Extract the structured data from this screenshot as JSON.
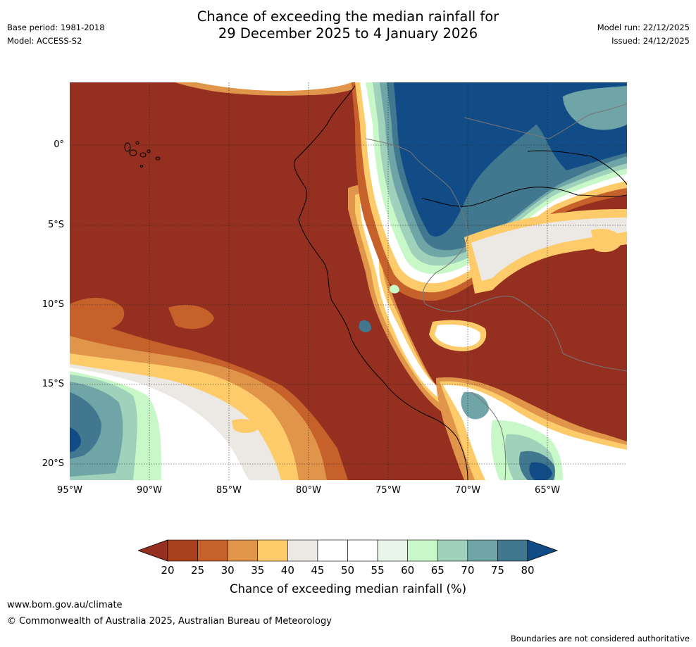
{
  "header": {
    "base_period": "Base period: 1981-2018",
    "model": "Model: ACCESS-S2",
    "model_run": "Model run: 22/12/2025",
    "issued": "Issued: 24/12/2025"
  },
  "title": {
    "line1": "Chance of exceeding the median rainfall for",
    "line2": "29 December 2025 to 4 January 2026"
  },
  "map": {
    "lat_labels": [
      "0°",
      "5°S",
      "10°S",
      "15°S",
      "20°S"
    ],
    "lon_labels": [
      "95°W",
      "90°W",
      "85°W",
      "80°W",
      "75°W",
      "70°W",
      "65°W"
    ]
  },
  "colorbar": {
    "ticks": [
      "20",
      "25",
      "30",
      "35",
      "40",
      "45",
      "50",
      "55",
      "60",
      "65",
      "70",
      "75",
      "80"
    ],
    "colors": [
      "#a9411f",
      "#c6612c",
      "#e0954a",
      "#fdcb69",
      "#ece8e4",
      "#ffffff",
      "#ffffff",
      "#e9f5e8",
      "#c8f7c8",
      "#9fd1bb",
      "#6fa5a7",
      "#42788f"
    ],
    "under_color": "#953020",
    "over_color": "#124c86",
    "label": "Chance of exceeding median rainfall (%)"
  },
  "footer": {
    "url": "www.bom.gov.au/climate",
    "copyright": "© Commonwealth of Australia 2025, Australian Bureau of Meteorology",
    "disclaimer": "Boundaries are not considered authoritative"
  }
}
